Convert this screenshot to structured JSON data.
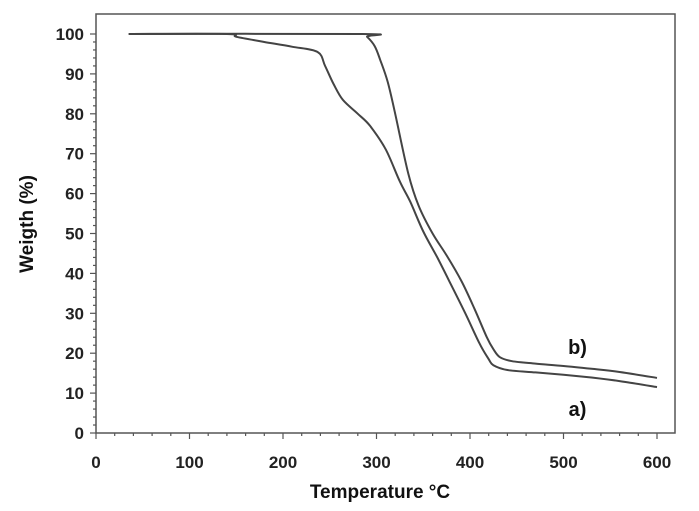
{
  "chart_data": {
    "type": "line",
    "title": "",
    "xlabel": "Temperature °C",
    "ylabel": "Weigth (%)",
    "xlim": [
      0,
      600
    ],
    "ylim": [
      0,
      100
    ],
    "xticks": [
      0,
      100,
      200,
      300,
      400,
      500,
      600
    ],
    "yticks": [
      0,
      10,
      20,
      30,
      40,
      50,
      60,
      70,
      80,
      90,
      100
    ],
    "grid": false,
    "legend": "inline labels",
    "line_color": "#444444",
    "series": [
      {
        "name": "a)",
        "x": [
          35,
          140,
          150,
          180,
          210,
          237,
          245,
          254,
          264,
          280,
          293,
          310,
          325,
          336,
          350,
          365,
          378,
          395,
          410,
          420,
          425,
          440,
          470,
          500,
          530,
          560,
          600
        ],
        "y": [
          100,
          100,
          99.3,
          98,
          96.8,
          95.5,
          92,
          87.5,
          83.5,
          80,
          77,
          71,
          63,
          58,
          50.5,
          44,
          38,
          30,
          22.5,
          18.5,
          17,
          15.8,
          15.2,
          14.6,
          13.9,
          13,
          11.5
        ]
      },
      {
        "name": "b)",
        "x": [
          35,
          285,
          290,
          298,
          304,
          312,
          320,
          334,
          345,
          360,
          375,
          391,
          405,
          418,
          425,
          432,
          445,
          470,
          500,
          530,
          560,
          600
        ],
        "y": [
          100,
          100,
          99.3,
          97,
          93.5,
          88,
          80,
          65,
          57,
          50,
          44.5,
          38,
          31,
          24,
          21,
          19,
          18,
          17.4,
          16.8,
          16.1,
          15.3,
          13.8
        ]
      }
    ],
    "annotations": [
      {
        "text": "b)",
        "x": 515,
        "y": 21.5
      },
      {
        "text": "a)",
        "x": 515,
        "y": 6
      }
    ]
  }
}
